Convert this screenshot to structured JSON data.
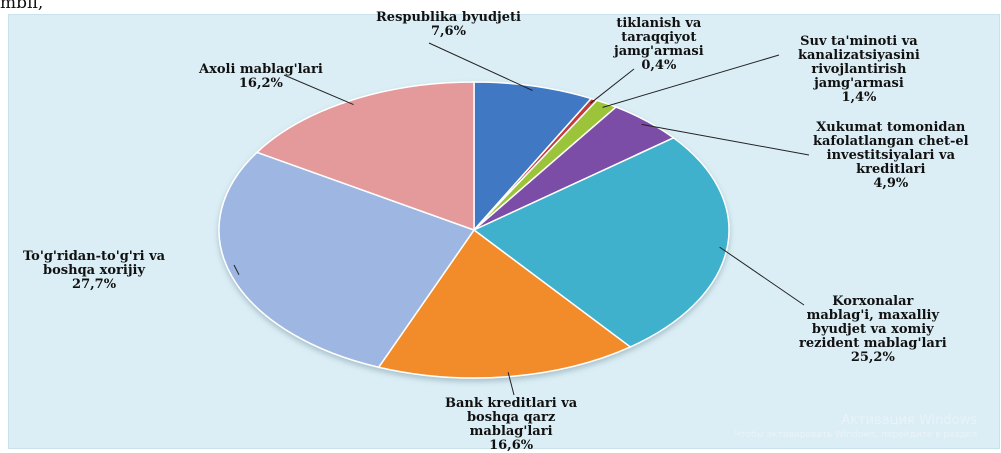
{
  "top_fragment": "mbil,",
  "chart_data": {
    "type": "pie",
    "title": "",
    "slices": [
      {
        "label": "Respublika byudjeti",
        "value": 7.6,
        "value_text": "7,6%",
        "color": "#3f78c4"
      },
      {
        "label": "tiklanish va taraqqiyot jamg'armasi",
        "value": 0.4,
        "value_text": "0,4%",
        "color": "#c43a3a"
      },
      {
        "label": "Suv ta'minoti va kanalizatsiyasini rivojlantirish jamg'armasi",
        "value": 1.4,
        "value_text": "1,4%",
        "color": "#9cc43a"
      },
      {
        "label": "Xukumat tomonidan kafolatlangan chet-el investitsiyalari va kreditlari",
        "value": 4.9,
        "value_text": "4,9%",
        "color": "#7b4ea6"
      },
      {
        "label": "Korxonalar mablag'i, maxalliy byudjet va xomiy rezident mablag'lari",
        "value": 25.2,
        "value_text": "25,2%",
        "color": "#3fb1cc"
      },
      {
        "label": "Bank kreditlari va boshqa qarz mablag'lari",
        "value": 16.6,
        "value_text": "16,6%",
        "color": "#f28c2a"
      },
      {
        "label": "To'g'ridan-to'g'ri va boshqa xorijiy",
        "value": 27.7,
        "value_text": "27,7%",
        "color": "#9db6e2"
      },
      {
        "label": "Axoli mablag'lari",
        "value": 16.2,
        "value_text": "16,2%",
        "color": "#e49a9a"
      }
    ],
    "label_lines": [
      [
        "Respublika byudjeti",
        "7,6%"
      ],
      [
        "tiklanish va",
        "taraqqiyot",
        "jamg'armasi",
        "0,4%"
      ],
      [
        "Suv ta'minoti va",
        "kanalizatsiyasini",
        "rivojlantirish",
        "jamg'armasi",
        "1,4%"
      ],
      [
        "Xukumat tomonidan",
        "kafolatlangan chet-el",
        "investitsiyalari va",
        "kreditlari",
        "4,9%"
      ],
      [
        "Korxonalar",
        "mablag'i, maxalliy",
        "byudjet va xomiy",
        "rezident mablag'lari",
        "25,2%"
      ],
      [
        "Bank kreditlari va",
        "boshqa qarz",
        "mablag'lari",
        "16,6%"
      ],
      [
        "To'g'ridan-to'g'ri va",
        "boshqa xorijiy",
        "27,7%"
      ],
      [
        "Axoli mablag'lari",
        "16,2%"
      ]
    ]
  },
  "watermark": {
    "line1": "Активация Windows",
    "line2": "Чтобы активировать Windows, перейдите в раздел"
  }
}
